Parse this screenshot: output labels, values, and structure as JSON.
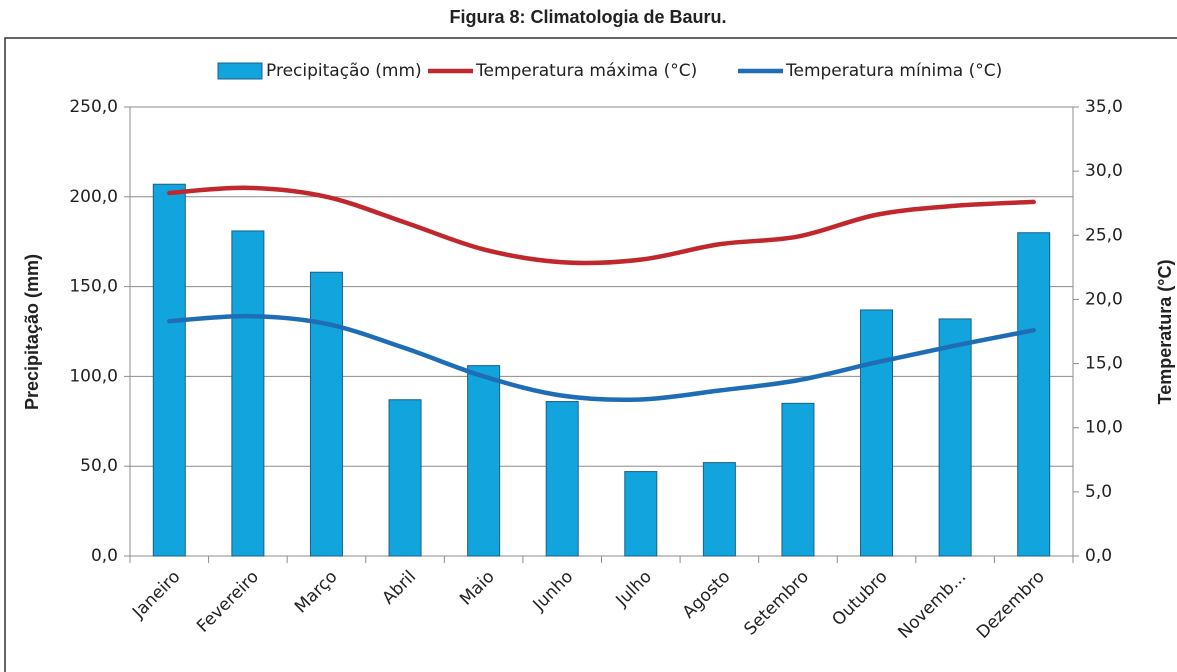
{
  "chart_data": {
    "type": "bar+line",
    "title": "Figura 8: Climatologia de Bauru.",
    "y_label": "Precipitação (mm)",
    "y2_label": "Temperatura (°C)",
    "legend": "top",
    "grid": true,
    "categories": [
      "Janeiro",
      "Fevereiro",
      "Março",
      "Abril",
      "Maio",
      "Junho",
      "Julho",
      "Agosto",
      "Setembro",
      "Outubro",
      "Novemb...",
      "Dezembro"
    ],
    "series": [
      {
        "name": "Precipitação (mm)",
        "type": "bar",
        "color": "#12a4dd",
        "values": [
          207,
          181,
          158,
          87,
          106,
          86,
          47,
          52,
          85,
          137,
          132,
          180
        ]
      },
      {
        "name": "Temperatura máxima (°C)",
        "type": "line",
        "axis": "y2",
        "color": "#c0282d",
        "values": [
          28.3,
          28.7,
          28.0,
          26.0,
          23.9,
          22.9,
          23.1,
          24.3,
          24.9,
          26.6,
          27.3,
          27.6
        ]
      },
      {
        "name": "Temperatura mínima (°C)",
        "type": "line",
        "axis": "y2",
        "color": "#1f6eb5",
        "values": [
          18.3,
          18.7,
          18.1,
          16.2,
          14.0,
          12.5,
          12.2,
          12.9,
          13.7,
          15.1,
          16.4,
          17.6
        ]
      }
    ],
    "ylim": [
      0,
      250
    ],
    "yticks": [
      {
        "value": 0,
        "label": "0,0"
      },
      {
        "value": 50,
        "label": "50,0"
      },
      {
        "value": 100,
        "label": "100,0"
      },
      {
        "value": 150,
        "label": "150,0"
      },
      {
        "value": 200,
        "label": "200,0"
      },
      {
        "value": 250,
        "label": "250,0"
      }
    ],
    "y2lim": [
      0,
      35
    ],
    "y2ticks": [
      {
        "value": 0,
        "label": "0,0"
      },
      {
        "value": 5,
        "label": "5,0"
      },
      {
        "value": 10,
        "label": "10,0"
      },
      {
        "value": 15,
        "label": "15,0"
      },
      {
        "value": 20,
        "label": "20,0"
      },
      {
        "value": 25,
        "label": "25,0"
      },
      {
        "value": 30,
        "label": "30,0"
      },
      {
        "value": 35,
        "label": "35,0"
      }
    ]
  }
}
